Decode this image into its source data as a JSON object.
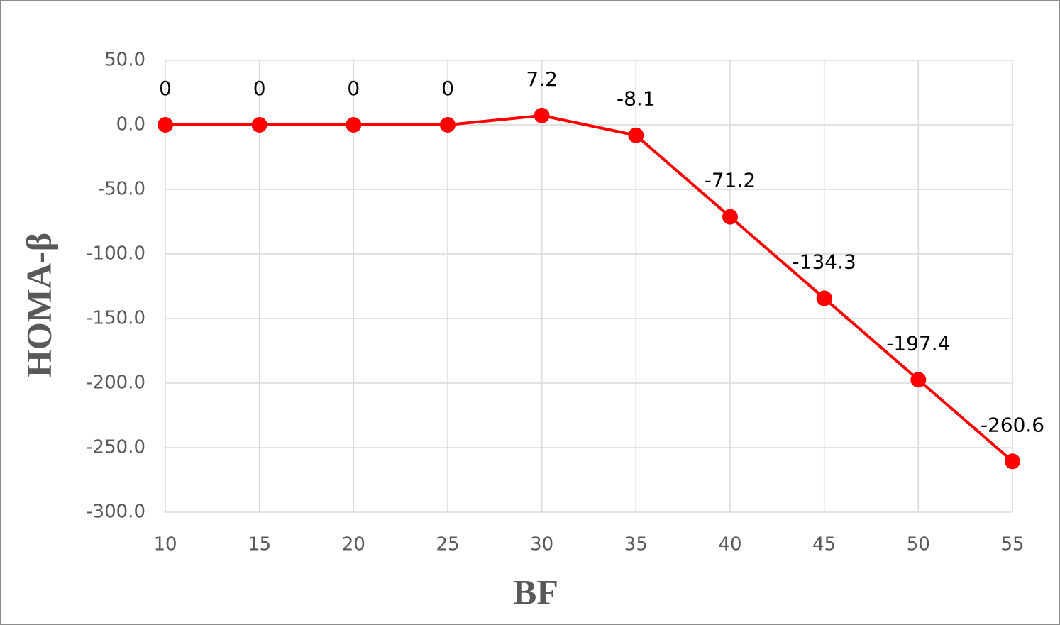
{
  "chart_data": {
    "type": "line",
    "x_label": "BF",
    "y_label": "HOMA-β",
    "x": [
      10,
      15,
      20,
      25,
      30,
      35,
      40,
      45,
      50,
      55
    ],
    "series": [
      {
        "name": "HOMA-β",
        "color": "#ff0000",
        "values": [
          0,
          0,
          0,
          0,
          7.2,
          -8.1,
          -71.2,
          -134.3,
          -197.4,
          -260.6
        ]
      }
    ],
    "xlim": [
      10,
      55
    ],
    "xticks": [
      10,
      15,
      20,
      25,
      30,
      35,
      40,
      45,
      50,
      55
    ],
    "ylim": [
      -300,
      50
    ],
    "yticks": [
      {
        "value": 50,
        "label": "50.0"
      },
      {
        "value": 0,
        "label": "0.0"
      },
      {
        "value": -50,
        "label": "-50.0"
      },
      {
        "value": -100,
        "label": "-100.0"
      },
      {
        "value": -150,
        "label": "-150.0"
      },
      {
        "value": -200,
        "label": "-200.0"
      },
      {
        "value": -250,
        "label": "-250.0"
      },
      {
        "value": -300,
        "label": "-300.0"
      }
    ],
    "grid": true,
    "data_labels": true
  }
}
